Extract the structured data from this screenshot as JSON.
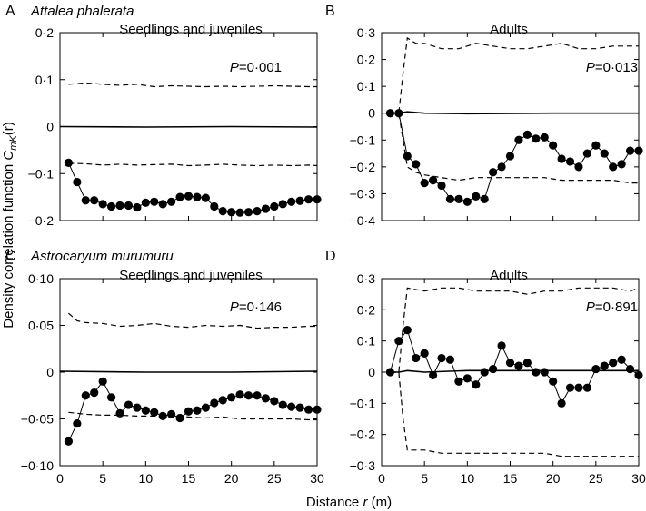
{
  "figure": {
    "ylabel_prefix": "Density correlation function ",
    "ylabel_sym": "C",
    "ylabel_sub": "mK",
    "ylabel_arg": "(r)",
    "xlabel_prefix": "Distance ",
    "xlabel_sym": "r",
    "xlabel_unit": " (m)"
  },
  "chart_data": [
    {
      "type": "line",
      "panel_letter": "A",
      "species": "Attalea phalerata",
      "title": "Seedlings and juveniles",
      "p_label": "P",
      "p_value": "=0·001",
      "xlim": [
        0,
        30
      ],
      "ylim": [
        -0.2,
        0.2
      ],
      "xticks": [
        0,
        5,
        10,
        15,
        20,
        25,
        30
      ],
      "yticks": [
        -0.2,
        -0.1,
        0,
        0.1,
        0.2
      ],
      "ytick_labels": [
        "−0·2",
        "−0·1",
        "0",
        "0·1",
        "0·2"
      ],
      "series": [
        {
          "name": "observed",
          "style": "dots",
          "x": [
            1,
            2,
            3,
            4,
            5,
            6,
            7,
            8,
            9,
            10,
            11,
            12,
            13,
            14,
            15,
            16,
            17,
            18,
            19,
            20,
            21,
            22,
            23,
            24,
            25,
            26,
            27,
            28,
            29,
            30
          ],
          "y": [
            -0.077,
            -0.118,
            -0.157,
            -0.157,
            -0.165,
            -0.17,
            -0.168,
            -0.168,
            -0.172,
            -0.162,
            -0.16,
            -0.165,
            -0.16,
            -0.15,
            -0.148,
            -0.15,
            -0.152,
            -0.17,
            -0.18,
            -0.182,
            -0.183,
            -0.182,
            -0.18,
            -0.175,
            -0.17,
            -0.165,
            -0.16,
            -0.158,
            -0.155,
            -0.155
          ]
        },
        {
          "name": "upper envelope",
          "style": "dashed",
          "x": [
            1,
            3,
            5,
            7,
            9,
            11,
            13,
            15,
            17,
            19,
            21,
            23,
            25,
            27,
            29,
            30
          ],
          "y": [
            0.09,
            0.093,
            0.09,
            0.088,
            0.09,
            0.085,
            0.087,
            0.086,
            0.085,
            0.086,
            0.085,
            0.086,
            0.087,
            0.086,
            0.085,
            0.085
          ]
        },
        {
          "name": "lower envelope",
          "style": "dashed",
          "x": [
            1,
            3,
            5,
            7,
            9,
            11,
            13,
            15,
            17,
            19,
            21,
            23,
            25,
            27,
            29,
            30
          ],
          "y": [
            -0.078,
            -0.079,
            -0.082,
            -0.08,
            -0.082,
            -0.081,
            -0.08,
            -0.083,
            -0.082,
            -0.08,
            -0.082,
            -0.083,
            -0.082,
            -0.083,
            -0.082,
            -0.083
          ]
        },
        {
          "name": "expectation",
          "style": "solid",
          "x": [
            0,
            10,
            20,
            30
          ],
          "y": [
            0,
            -0.001,
            0,
            -0.001
          ]
        }
      ]
    },
    {
      "type": "line",
      "panel_letter": "B",
      "species": "",
      "title": "Adults",
      "p_label": "P",
      "p_value": "=0·013",
      "xlim": [
        0,
        30
      ],
      "ylim": [
        -0.4,
        0.3
      ],
      "xticks": [
        0,
        5,
        10,
        15,
        20,
        25,
        30
      ],
      "yticks": [
        -0.4,
        -0.3,
        -0.2,
        -0.1,
        0,
        0.1,
        0.2,
        0.3
      ],
      "ytick_labels": [
        "−0·4",
        "−0·3",
        "−0·2",
        "−0·1",
        "0",
        "0·1",
        "0·2",
        "0·3"
      ],
      "series": [
        {
          "name": "observed",
          "style": "dots",
          "x": [
            1,
            2,
            3,
            4,
            5,
            6,
            7,
            8,
            9,
            10,
            11,
            12,
            13,
            14,
            15,
            16,
            17,
            18,
            19,
            20,
            21,
            22,
            23,
            24,
            25,
            26,
            27,
            28,
            29,
            30
          ],
          "y": [
            0,
            0,
            -0.16,
            -0.19,
            -0.26,
            -0.25,
            -0.27,
            -0.32,
            -0.32,
            -0.33,
            -0.31,
            -0.32,
            -0.22,
            -0.2,
            -0.16,
            -0.1,
            -0.08,
            -0.095,
            -0.09,
            -0.12,
            -0.17,
            -0.18,
            -0.2,
            -0.15,
            -0.12,
            -0.15,
            -0.2,
            -0.19,
            -0.14,
            -0.14
          ]
        },
        {
          "name": "upper envelope",
          "style": "dashed",
          "x": [
            1,
            2,
            2.5,
            3,
            4,
            5,
            7,
            9,
            11,
            13,
            15,
            17,
            19,
            21,
            23,
            25,
            27,
            29,
            30
          ],
          "y": [
            0,
            0,
            0.15,
            0.28,
            0.26,
            0.26,
            0.24,
            0.24,
            0.26,
            0.25,
            0.24,
            0.24,
            0.25,
            0.26,
            0.24,
            0.24,
            0.25,
            0.25,
            0.25
          ]
        },
        {
          "name": "lower envelope",
          "style": "dashed",
          "x": [
            1,
            2,
            3,
            4,
            5,
            7,
            9,
            11,
            13,
            15,
            17,
            19,
            21,
            23,
            25,
            27,
            29,
            30
          ],
          "y": [
            0,
            0,
            -0.2,
            -0.22,
            -0.23,
            -0.24,
            -0.25,
            -0.24,
            -0.24,
            -0.24,
            -0.24,
            -0.24,
            -0.25,
            -0.25,
            -0.25,
            -0.25,
            -0.26,
            -0.26
          ]
        },
        {
          "name": "expectation",
          "style": "solid",
          "x": [
            1,
            2,
            3,
            5,
            10,
            20,
            30
          ],
          "y": [
            0,
            0,
            0.005,
            0,
            -0.002,
            0,
            0
          ]
        }
      ]
    },
    {
      "type": "line",
      "panel_letter": "C",
      "species": "Astrocaryum murumuru",
      "title": "Seedlings and juveniles",
      "p_label": "P",
      "p_value": "=0·146",
      "xlim": [
        0,
        30
      ],
      "ylim": [
        -0.1,
        0.1
      ],
      "xticks": [
        0,
        5,
        10,
        15,
        20,
        25,
        30
      ],
      "xtick_labels": [
        "0",
        "5",
        "10",
        "15",
        "20",
        "25",
        "30"
      ],
      "yticks": [
        -0.1,
        -0.05,
        0,
        0.05,
        0.1
      ],
      "ytick_labels": [
        "−0·10",
        "−0·05",
        "0",
        "0·05",
        "0·10"
      ],
      "series": [
        {
          "name": "observed",
          "style": "dots",
          "x": [
            1,
            2,
            3,
            4,
            5,
            6,
            7,
            8,
            9,
            10,
            11,
            12,
            13,
            14,
            15,
            16,
            17,
            18,
            19,
            20,
            21,
            22,
            23,
            24,
            25,
            26,
            27,
            28,
            29,
            30
          ],
          "y": [
            -0.074,
            -0.055,
            -0.025,
            -0.022,
            -0.01,
            -0.027,
            -0.044,
            -0.035,
            -0.038,
            -0.041,
            -0.043,
            -0.047,
            -0.045,
            -0.049,
            -0.042,
            -0.041,
            -0.038,
            -0.033,
            -0.03,
            -0.027,
            -0.024,
            -0.025,
            -0.025,
            -0.028,
            -0.031,
            -0.035,
            -0.037,
            -0.038,
            -0.04,
            -0.04
          ]
        },
        {
          "name": "upper envelope",
          "style": "dashed",
          "x": [
            1,
            2,
            3,
            5,
            7,
            9,
            11,
            13,
            15,
            17,
            19,
            21,
            23,
            25,
            27,
            29,
            30
          ],
          "y": [
            0.063,
            0.055,
            0.053,
            0.052,
            0.049,
            0.05,
            0.052,
            0.049,
            0.048,
            0.05,
            0.049,
            0.05,
            0.047,
            0.048,
            0.048,
            0.049,
            0.049
          ]
        },
        {
          "name": "lower envelope",
          "style": "dashed",
          "x": [
            1,
            3,
            5,
            7,
            9,
            11,
            13,
            15,
            17,
            19,
            21,
            23,
            25,
            27,
            29,
            30
          ],
          "y": [
            -0.043,
            -0.045,
            -0.046,
            -0.046,
            -0.047,
            -0.047,
            -0.047,
            -0.048,
            -0.049,
            -0.048,
            -0.05,
            -0.05,
            -0.05,
            -0.05,
            -0.051,
            -0.051
          ]
        },
        {
          "name": "expectation",
          "style": "solid",
          "x": [
            0,
            10,
            20,
            30
          ],
          "y": [
            0.001,
            0,
            0,
            0.001
          ]
        }
      ]
    },
    {
      "type": "line",
      "panel_letter": "D",
      "species": "",
      "title": "Adults",
      "p_label": "P",
      "p_value": "=0·891",
      "xlim": [
        0,
        30
      ],
      "ylim": [
        -0.3,
        0.3
      ],
      "xticks": [
        0,
        5,
        10,
        15,
        20,
        25,
        30
      ],
      "xtick_labels": [
        "0",
        "5",
        "10",
        "15",
        "20",
        "25",
        "30"
      ],
      "yticks": [
        -0.3,
        -0.2,
        -0.1,
        0,
        0.1,
        0.2,
        0.3
      ],
      "ytick_labels": [
        "−0·3",
        "−0·2",
        "−0·1",
        "0",
        "0·1",
        "0·2",
        "0·3"
      ],
      "series": [
        {
          "name": "observed",
          "style": "dots",
          "x": [
            1,
            2,
            3,
            4,
            5,
            6,
            7,
            8,
            9,
            10,
            11,
            12,
            13,
            14,
            15,
            16,
            17,
            18,
            19,
            20,
            21,
            22,
            23,
            24,
            25,
            26,
            27,
            28,
            29,
            30
          ],
          "y": [
            0,
            0.1,
            0.135,
            0.045,
            0.06,
            -0.01,
            0.045,
            0.04,
            -0.03,
            -0.02,
            -0.04,
            0,
            0.01,
            0.085,
            0.03,
            0.02,
            0.03,
            0,
            0,
            -0.03,
            -0.1,
            -0.05,
            -0.05,
            -0.05,
            0.01,
            0.02,
            0.03,
            0.04,
            0.01,
            -0.01
          ]
        },
        {
          "name": "upper envelope",
          "style": "dashed",
          "x": [
            1,
            2,
            2.5,
            3,
            5,
            7,
            9,
            11,
            13,
            15,
            17,
            19,
            21,
            23,
            25,
            27,
            29,
            30
          ],
          "y": [
            0,
            0,
            0.15,
            0.27,
            0.26,
            0.27,
            0.27,
            0.26,
            0.26,
            0.26,
            0.25,
            0.26,
            0.26,
            0.27,
            0.27,
            0.27,
            0.26,
            0.27
          ]
        },
        {
          "name": "lower envelope",
          "style": "dashed",
          "x": [
            1,
            2,
            2.5,
            3,
            5,
            7,
            9,
            11,
            13,
            15,
            17,
            19,
            21,
            23,
            25,
            27,
            29,
            30
          ],
          "y": [
            0,
            0,
            -0.15,
            -0.25,
            -0.25,
            -0.26,
            -0.26,
            -0.26,
            -0.26,
            -0.26,
            -0.26,
            -0.26,
            -0.27,
            -0.27,
            -0.27,
            -0.27,
            -0.27,
            -0.27
          ]
        },
        {
          "name": "expectation",
          "style": "solid",
          "x": [
            1,
            2,
            3,
            5,
            10,
            20,
            30
          ],
          "y": [
            0,
            0,
            0.005,
            0,
            0.005,
            0.005,
            0.005
          ]
        }
      ]
    }
  ]
}
